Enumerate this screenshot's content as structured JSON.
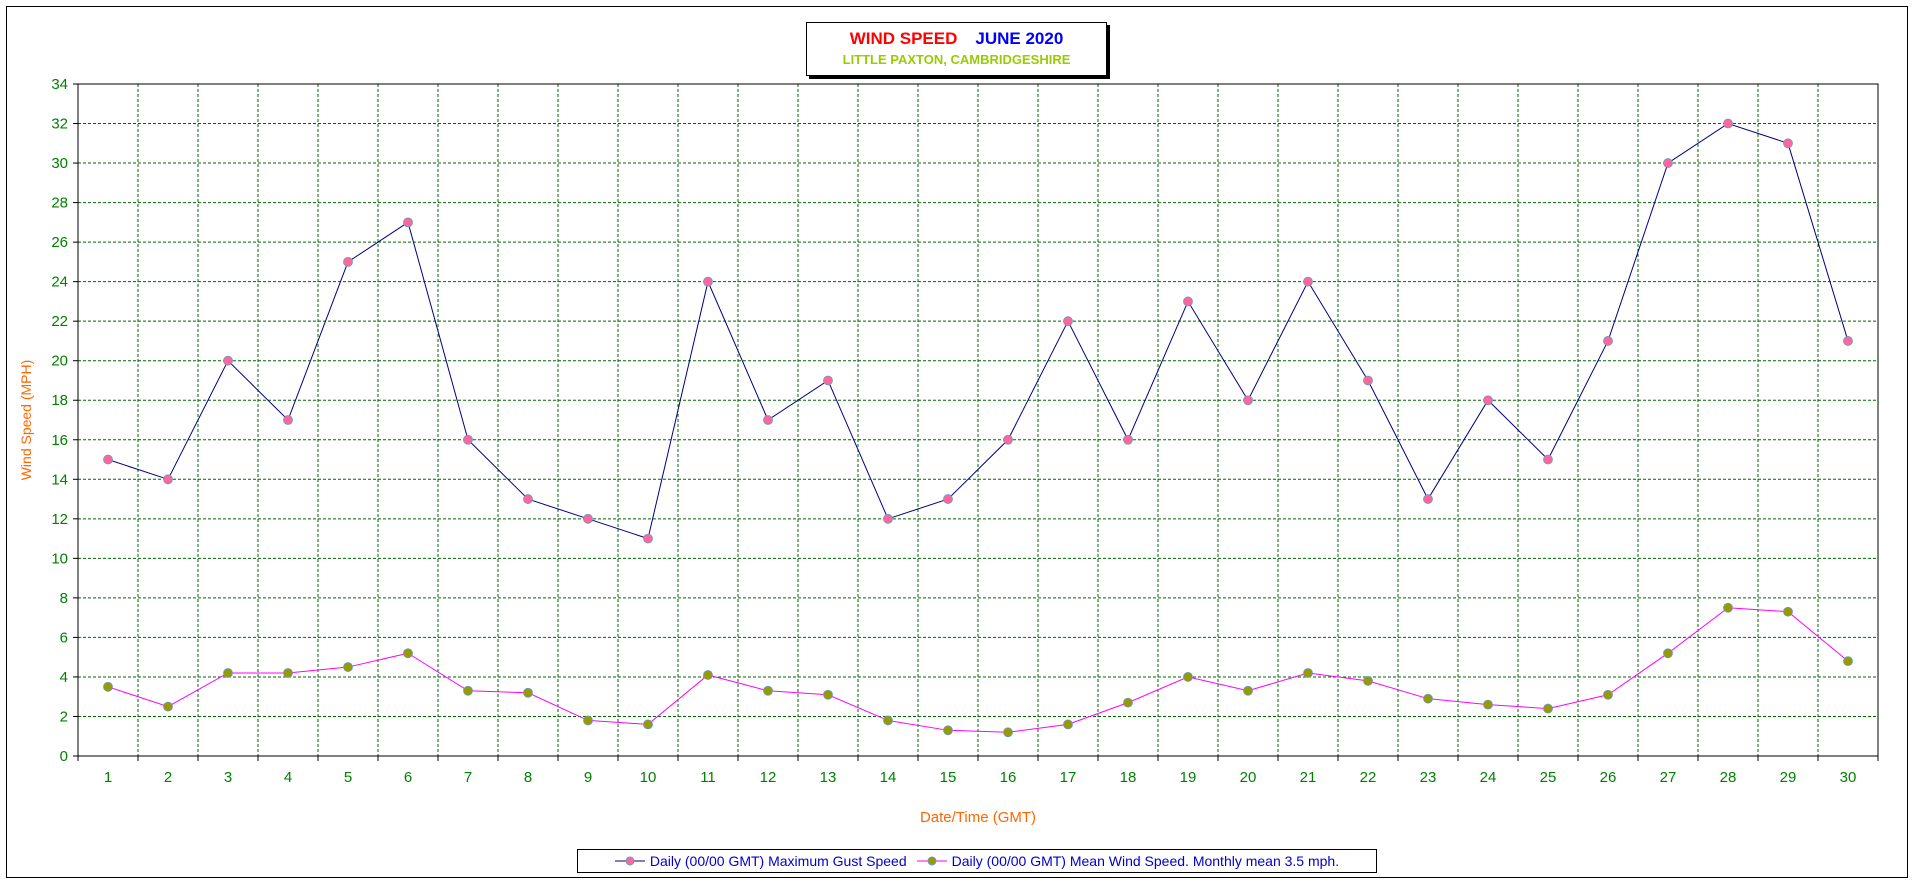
{
  "chart_data": {
    "type": "line",
    "title": "WIND SPEED",
    "subtitle_month": "JUNE 2020",
    "location": "LITTLE PAXTON, CAMBRIDGESHIRE",
    "xlabel": "Date/Time (GMT)",
    "ylabel": "Wind Speed (MPH)",
    "ylim": [
      0,
      34
    ],
    "ytick_step": 2,
    "grid": true,
    "legend_position": "bottom",
    "categories": [
      "1",
      "2",
      "3",
      "4",
      "5",
      "6",
      "7",
      "8",
      "9",
      "10",
      "11",
      "12",
      "13",
      "14",
      "15",
      "16",
      "17",
      "18",
      "19",
      "20",
      "21",
      "22",
      "23",
      "24",
      "25",
      "26",
      "27",
      "28",
      "29",
      "30"
    ],
    "series": [
      {
        "name": "Daily (00/00 GMT) Maximum Gust Speed",
        "line_color": "#000080",
        "marker_color": "#ff6699",
        "values": [
          15,
          14,
          20,
          17,
          25,
          27,
          16,
          13,
          12,
          11,
          24,
          17,
          19,
          12,
          13,
          16,
          22,
          16,
          23,
          18,
          24,
          19,
          13,
          18,
          15,
          21,
          30,
          32,
          31,
          21
        ]
      },
      {
        "name": "Daily (00/00 GMT) Mean Wind Speed. Monthly mean 3.5 mph.",
        "line_color": "#ff00ff",
        "marker_color": "#999900",
        "values": [
          3.5,
          2.5,
          4.2,
          4.2,
          4.5,
          5.2,
          3.3,
          3.2,
          1.8,
          1.6,
          4.1,
          3.3,
          3.1,
          1.8,
          1.3,
          1.2,
          1.6,
          2.7,
          4.0,
          3.3,
          4.2,
          3.8,
          2.9,
          2.6,
          2.4,
          3.1,
          5.2,
          7.5,
          7.3,
          4.8
        ]
      }
    ]
  },
  "colors": {
    "axis_tick_text": "#008000",
    "axis_title_text": "#ff6600",
    "grid_line": "#006600",
    "legend_text": "#0000cc"
  }
}
